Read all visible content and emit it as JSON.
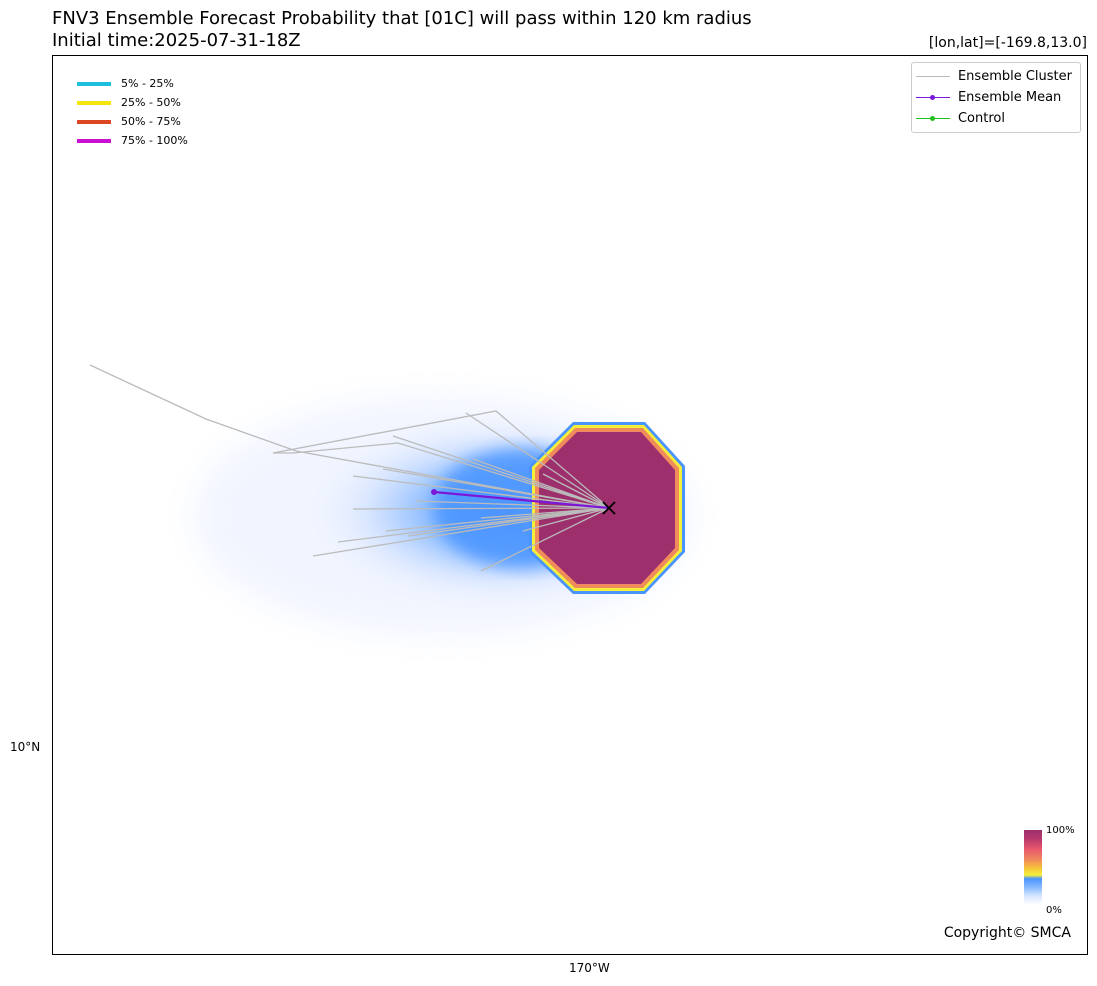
{
  "title": {
    "line1": "FNV3 Ensemble Forecast Probability that [01C] will pass within 120 km radius",
    "line2": "Initial time:2025-07-31-18Z"
  },
  "coordinate_readout": "[lon,lat]=[-169.8,13.0]",
  "axes": {
    "lat_tick": "10°N",
    "lon_tick": "170°W"
  },
  "probability_legend": [
    {
      "label": "5% - 25%",
      "color": "#1ebfdc"
    },
    {
      "label": "25% - 50%",
      "color": "#f5e50c"
    },
    {
      "label": "50% - 75%",
      "color": "#dc4623"
    },
    {
      "label": "75% - 100%",
      "color": "#c80fd2"
    }
  ],
  "track_legend": [
    {
      "label": "Ensemble Cluster",
      "color": "#bbbbbb",
      "marker": false
    },
    {
      "label": "Ensemble Mean",
      "color": "#7b18d8",
      "marker": true
    },
    {
      "label": "Control",
      "color": "#22c01c",
      "marker": true
    }
  ],
  "colorbar": {
    "max_label": "100%",
    "min_label": "0%"
  },
  "copyright": "Copyright© SMCA",
  "colors": {
    "high_probability_fill": "#9c2f6c",
    "ensemble_cluster": "#bbbbbb",
    "ensemble_mean": "#7b18d8",
    "storm_marker": "#000000"
  }
}
